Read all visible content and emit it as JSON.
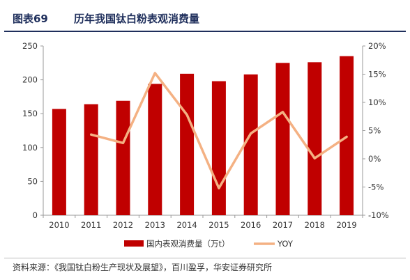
{
  "header": {
    "figure_number": "图表69",
    "title": "历年我国钛白粉表观消费量"
  },
  "source": "资料来源：《我国钛白粉生产现状及展望》，百川盈孚，华安证券研究所",
  "colors": {
    "bar": "#c00000",
    "line": "#f4b183",
    "axis": "#999999",
    "header": "#1f2f5c"
  },
  "chart_data": {
    "type": "bar",
    "title": "",
    "xlabel": "",
    "ylabel": "",
    "categories": [
      "2010",
      "2011",
      "2012",
      "2013",
      "2014",
      "2015",
      "2016",
      "2017",
      "2018",
      "2019"
    ],
    "series": [
      {
        "name": "国内表观消费量（万t）",
        "type": "bar",
        "axis": "left",
        "values": [
          157,
          164,
          169,
          194,
          209,
          198,
          208,
          225,
          226,
          235
        ]
      },
      {
        "name": "YOY",
        "type": "line",
        "axis": "right",
        "values": [
          null,
          4.3,
          2.8,
          15.2,
          7.8,
          -5.2,
          4.5,
          8.3,
          0.1,
          3.9
        ]
      }
    ],
    "ylim": [
      0,
      250
    ],
    "yticks": [
      "0",
      "50",
      "100",
      "150",
      "200",
      "250"
    ],
    "y2lim": [
      -10,
      20
    ],
    "y2ticks": [
      "-10%",
      "-5%",
      "0%",
      "5%",
      "10%",
      "15%",
      "20%"
    ],
    "grid": false,
    "legend": "bottom"
  }
}
